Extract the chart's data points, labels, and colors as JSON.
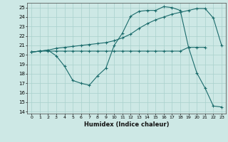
{
  "xlabel": "Humidex (Indice chaleur)",
  "xlim": [
    -0.5,
    23.5
  ],
  "ylim": [
    13.8,
    25.5
  ],
  "yticks": [
    14,
    15,
    16,
    17,
    18,
    19,
    20,
    21,
    22,
    23,
    24,
    25
  ],
  "xticks": [
    0,
    1,
    2,
    3,
    4,
    5,
    6,
    7,
    8,
    9,
    10,
    11,
    12,
    13,
    14,
    15,
    16,
    17,
    18,
    19,
    20,
    21,
    22,
    23
  ],
  "bg_color": "#cde8e5",
  "grid_color": "#a8d0cc",
  "line_color": "#1a6b6b",
  "line1_x": [
    0,
    1,
    2,
    3,
    4,
    5,
    6,
    7,
    8,
    9,
    10,
    11,
    12,
    13,
    14,
    15,
    16,
    17,
    18,
    19,
    20,
    21
  ],
  "line1_y": [
    20.3,
    20.4,
    20.4,
    20.4,
    20.4,
    20.4,
    20.4,
    20.4,
    20.4,
    20.4,
    20.4,
    20.4,
    20.4,
    20.4,
    20.4,
    20.4,
    20.4,
    20.4,
    20.4,
    20.8,
    20.8,
    20.8
  ],
  "line2_x": [
    0,
    1,
    2,
    3,
    4,
    5,
    6,
    7,
    8,
    9,
    10,
    11,
    12,
    13,
    14,
    15,
    16,
    17,
    18,
    19,
    20,
    21,
    22,
    23
  ],
  "line2_y": [
    20.3,
    20.4,
    20.5,
    19.9,
    18.8,
    17.3,
    17.0,
    16.8,
    17.8,
    18.6,
    21.0,
    22.3,
    24.1,
    24.6,
    24.7,
    24.7,
    25.1,
    25.0,
    24.7,
    20.8,
    18.1,
    16.5,
    14.6,
    14.5
  ],
  "line3_x": [
    0,
    1,
    2,
    3,
    4,
    5,
    6,
    7,
    8,
    9,
    10,
    11,
    12,
    13,
    14,
    15,
    16,
    17,
    18,
    19,
    20,
    21,
    22,
    23
  ],
  "line3_y": [
    20.3,
    20.4,
    20.5,
    20.7,
    20.8,
    20.9,
    21.0,
    21.1,
    21.2,
    21.3,
    21.5,
    21.8,
    22.2,
    22.8,
    23.3,
    23.7,
    24.0,
    24.3,
    24.5,
    24.7,
    24.9,
    24.9,
    23.9,
    21.0
  ]
}
